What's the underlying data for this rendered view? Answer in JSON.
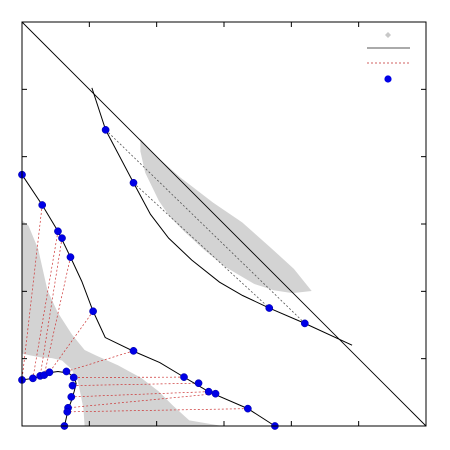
{
  "chart_data": {
    "type": "scatter",
    "title": "",
    "xlabel": "",
    "ylabel": "",
    "xlim": [
      0,
      1
    ],
    "ylim": [
      0,
      1
    ],
    "grid": false,
    "legend": {
      "position": "top-right",
      "entries": [
        {
          "name": "",
          "marker": "diamond",
          "color": "#c8c8c8"
        },
        {
          "name": "",
          "marker": "line",
          "color": "#555555"
        },
        {
          "name": "",
          "marker": "dashed-line",
          "color": "#d06060"
        },
        {
          "name": "",
          "marker": "circle",
          "color": "#0000e6"
        }
      ]
    },
    "colors": {
      "point": "#0000e6",
      "shade": "#d3d3d3",
      "curve": "#000000",
      "dashed_upper": "#555555",
      "dashed_lower": "#cc3333"
    },
    "diagonal": [
      [
        0,
        1
      ],
      [
        1,
        0
      ]
    ],
    "upper_region": [
      [
        0.293,
        0.711
      ],
      [
        0.333,
        0.667
      ],
      [
        0.392,
        0.615
      ],
      [
        0.473,
        0.553
      ],
      [
        0.545,
        0.504
      ],
      [
        0.616,
        0.441
      ],
      [
        0.673,
        0.389
      ],
      [
        0.717,
        0.334
      ],
      [
        0.669,
        0.329
      ],
      [
        0.623,
        0.336
      ],
      [
        0.574,
        0.352
      ],
      [
        0.503,
        0.394
      ],
      [
        0.451,
        0.436
      ],
      [
        0.401,
        0.482
      ],
      [
        0.366,
        0.518
      ],
      [
        0.339,
        0.557
      ],
      [
        0.305,
        0.627
      ],
      [
        0.293,
        0.68
      ]
    ],
    "lower_region": [
      [
        0.0,
        0.509
      ],
      [
        0.016,
        0.496
      ],
      [
        0.04,
        0.438
      ],
      [
        0.063,
        0.336
      ],
      [
        0.088,
        0.282
      ],
      [
        0.124,
        0.226
      ],
      [
        0.155,
        0.188
      ],
      [
        0.182,
        0.175
      ],
      [
        0.238,
        0.15
      ],
      [
        0.295,
        0.119
      ],
      [
        0.338,
        0.086
      ],
      [
        0.374,
        0.05
      ],
      [
        0.414,
        0.014
      ],
      [
        0.496,
        0.0
      ],
      [
        0.155,
        0.0
      ],
      [
        0.152,
        0.043
      ],
      [
        0.145,
        0.079
      ],
      [
        0.138,
        0.112
      ],
      [
        0.122,
        0.141
      ],
      [
        0.099,
        0.162
      ],
      [
        0.074,
        0.168
      ],
      [
        0.047,
        0.17
      ],
      [
        0.025,
        0.174
      ],
      [
        0.0,
        0.179
      ]
    ],
    "upper_curve": [
      [
        0.173,
        0.837
      ],
      [
        0.207,
        0.733
      ],
      [
        0.276,
        0.602
      ],
      [
        0.318,
        0.524
      ],
      [
        0.363,
        0.465
      ],
      [
        0.42,
        0.411
      ],
      [
        0.489,
        0.356
      ],
      [
        0.546,
        0.323
      ],
      [
        0.612,
        0.292
      ],
      [
        0.7,
        0.254
      ],
      [
        0.817,
        0.2
      ]
    ],
    "lower_curve": [
      [
        0.0,
        0.622
      ],
      [
        0.05,
        0.547
      ],
      [
        0.089,
        0.482
      ],
      [
        0.12,
        0.418
      ],
      [
        0.148,
        0.358
      ],
      [
        0.176,
        0.284
      ],
      [
        0.206,
        0.219
      ],
      [
        0.274,
        0.186
      ],
      [
        0.341,
        0.157
      ],
      [
        0.401,
        0.121
      ],
      [
        0.462,
        0.085
      ],
      [
        0.559,
        0.043
      ],
      [
        0.626,
        0.0
      ]
    ],
    "inner_hook": [
      [
        0.0,
        0.114
      ],
      [
        0.027,
        0.118
      ],
      [
        0.05,
        0.124
      ],
      [
        0.069,
        0.132
      ],
      [
        0.089,
        0.135
      ],
      [
        0.115,
        0.131
      ],
      [
        0.13,
        0.12
      ],
      [
        0.134,
        0.105
      ],
      [
        0.129,
        0.085
      ],
      [
        0.122,
        0.062
      ],
      [
        0.114,
        0.04
      ],
      [
        0.109,
        0.017
      ],
      [
        0.105,
        0.0
      ]
    ],
    "series": [
      {
        "values": [
          [
            0.207,
            0.733
          ],
          [
            0.276,
            0.602
          ],
          [
            0.612,
            0.292
          ],
          [
            0.7,
            0.254
          ]
        ]
      },
      {
        "values": [
          [
            0.0,
            0.622
          ],
          [
            0.05,
            0.547
          ],
          [
            0.089,
            0.482
          ],
          [
            0.099,
            0.465
          ],
          [
            0.12,
            0.418
          ],
          [
            0.176,
            0.284
          ],
          [
            0.276,
            0.186
          ],
          [
            0.401,
            0.121
          ],
          [
            0.437,
            0.106
          ],
          [
            0.462,
            0.085
          ],
          [
            0.479,
            0.08
          ],
          [
            0.559,
            0.043
          ],
          [
            0.626,
            0.0
          ]
        ]
      },
      {
        "values": [
          [
            0.0,
            0.114
          ],
          [
            0.027,
            0.118
          ],
          [
            0.045,
            0.124
          ],
          [
            0.055,
            0.126
          ],
          [
            0.068,
            0.133
          ],
          [
            0.11,
            0.135
          ],
          [
            0.128,
            0.12
          ],
          [
            0.125,
            0.1
          ],
          [
            0.122,
            0.072
          ],
          [
            0.114,
            0.045
          ],
          [
            0.112,
            0.035
          ],
          [
            0.105,
            0.0
          ]
        ]
      }
    ],
    "tie_lines_upper": [
      [
        [
          0.207,
          0.733
        ],
        [
          0.7,
          0.254
        ]
      ],
      [
        [
          0.276,
          0.602
        ],
        [
          0.612,
          0.292
        ]
      ]
    ],
    "tie_lines_lower": [
      [
        [
          0.05,
          0.547
        ],
        [
          0.0,
          0.114
        ]
      ],
      [
        [
          0.089,
          0.482
        ],
        [
          0.027,
          0.118
        ]
      ],
      [
        [
          0.099,
          0.465
        ],
        [
          0.045,
          0.124
        ]
      ],
      [
        [
          0.12,
          0.418
        ],
        [
          0.055,
          0.126
        ]
      ],
      [
        [
          0.176,
          0.284
        ],
        [
          0.068,
          0.133
        ]
      ],
      [
        [
          0.276,
          0.186
        ],
        [
          0.11,
          0.135
        ]
      ],
      [
        [
          0.401,
          0.121
        ],
        [
          0.128,
          0.12
        ]
      ],
      [
        [
          0.437,
          0.106
        ],
        [
          0.125,
          0.1
        ]
      ],
      [
        [
          0.462,
          0.085
        ],
        [
          0.122,
          0.072
        ]
      ],
      [
        [
          0.479,
          0.08
        ],
        [
          0.114,
          0.045
        ]
      ],
      [
        [
          0.559,
          0.043
        ],
        [
          0.112,
          0.035
        ]
      ]
    ]
  }
}
